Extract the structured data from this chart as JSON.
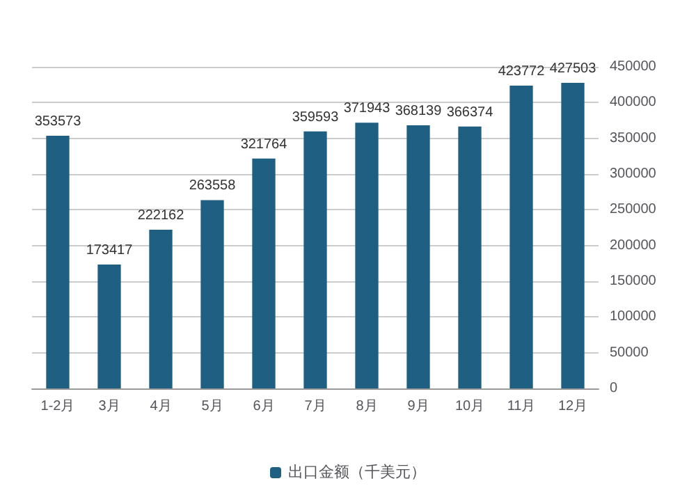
{
  "chart_data": {
    "type": "bar",
    "categories": [
      "1-2月",
      "3月",
      "4月",
      "5月",
      "6月",
      "7月",
      "8月",
      "9月",
      "10月",
      "11月",
      "12月"
    ],
    "series": [
      {
        "name": "出口金额（千美元）",
        "color": "#1f5f82",
        "values": [
          353573,
          173417,
          222162,
          263558,
          321764,
          359593,
          371943,
          368139,
          366374,
          423772,
          427503
        ]
      }
    ],
    "ylim": [
      0,
      450000
    ],
    "yticks": [
      0,
      50000,
      100000,
      150000,
      200000,
      250000,
      300000,
      350000,
      400000,
      450000
    ],
    "grid": "y",
    "legend": "bottom",
    "data_labels": true
  }
}
